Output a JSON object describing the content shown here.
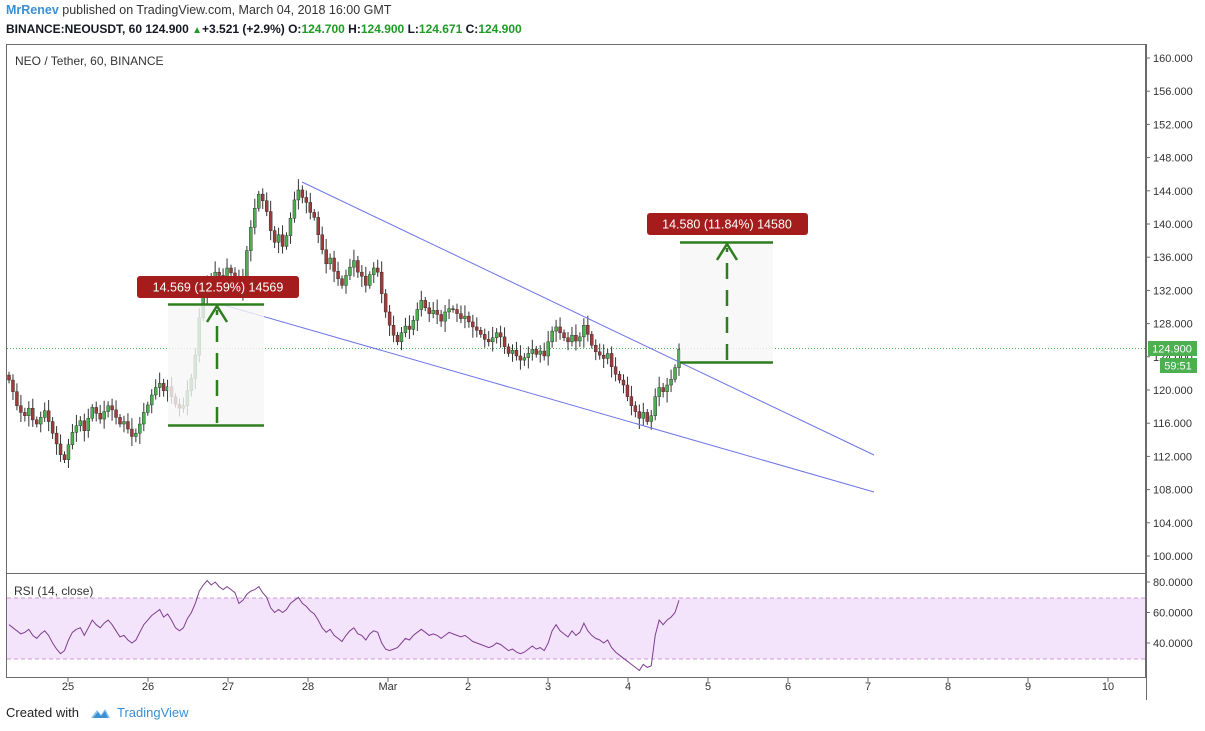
{
  "header": {
    "author": "MrRenev",
    "published_text": "published on TradingView.com, March 04, 2018 16:00 GMT",
    "symbol": "BINANCE:NEOUSDT, 60",
    "last": "124.900",
    "change": "+3.521 (+2.9%)",
    "open_label": "O:",
    "open": "124.700",
    "high_label": "H:",
    "high": "124.900",
    "low_label": "L:",
    "low": "124.671",
    "close_label": "C:",
    "close": "124.900"
  },
  "pane_title": "NEO / Tether, 60, BINANCE",
  "rsi_title": "RSI (14, close)",
  "price_badge": {
    "value": "124.900",
    "timer": "59:51"
  },
  "annotations": {
    "left_measure": "14.569 (12.59%) 14569",
    "right_measure": "14.580 (11.84%) 14580"
  },
  "footer": {
    "created_with": "Created with",
    "brand": "TradingView"
  },
  "colors": {
    "up": "#4caf50",
    "down": "#9e3b3b",
    "wick": "#333333",
    "trendline": "#6e74e8",
    "measure": "#2e7d1e",
    "badge_red": "#a51c1c",
    "price_tag": "#4caf50",
    "rsi_line": "#7e3f8f",
    "rsi_band": "#f3e3fb"
  },
  "chart_data": [
    {
      "type": "candlestick",
      "title": "NEO / Tether, 60, BINANCE",
      "x_ticks": [
        "25",
        "26",
        "27",
        "28",
        "Mar",
        "2",
        "3",
        "4",
        "5",
        "6",
        "7",
        "8",
        "9",
        "10"
      ],
      "y_ticks": [
        "100.000",
        "104.000",
        "108.000",
        "112.000",
        "116.000",
        "120.000",
        "124.000",
        "128.000",
        "132.000",
        "136.000",
        "140.000",
        "144.000",
        "148.000",
        "152.000",
        "156.000",
        "160.000"
      ],
      "ylim": [
        96,
        162
      ],
      "last_price": 124.9,
      "close_series_approx": [
        121.2,
        119.8,
        118.1,
        117.3,
        116.9,
        117.8,
        116.4,
        115.9,
        116.7,
        117.5,
        116.2,
        114.8,
        113.5,
        112.2,
        111.6,
        113.4,
        114.9,
        115.7,
        116.3,
        115.1,
        116.6,
        117.9,
        117.2,
        116.5,
        117.4,
        118.1,
        117.6,
        116.7,
        115.9,
        116.2,
        115.3,
        114.4,
        114.8,
        115.9,
        117.3,
        118.2,
        119.4,
        120.3,
        120.8,
        119.9,
        120.4,
        119.2,
        118.3,
        117.8,
        118.1,
        119.9,
        121.4,
        124.2,
        128.7,
        131.4,
        133.1,
        132.6,
        134.2,
        133.8,
        133.2,
        134.7,
        134.1,
        133.5,
        131.9,
        133.3,
        136.8,
        139.6,
        141.9,
        143.6,
        142.8,
        141.5,
        139.2,
        137.8,
        138.7,
        137.3,
        138.6,
        140.7,
        142.9,
        144.1,
        143.2,
        142.6,
        141.4,
        140.8,
        138.7,
        136.9,
        135.2,
        135.9,
        134.3,
        133.4,
        132.6,
        133.8,
        134.8,
        135.6,
        134.2,
        133.7,
        132.6,
        133.9,
        134.7,
        134.2,
        131.6,
        129.4,
        127.8,
        126.6,
        125.8,
        126.9,
        127.7,
        127.3,
        128.4,
        129.7,
        130.8,
        129.9,
        129.2,
        129.6,
        129.1,
        128.3,
        129.4,
        129.8,
        129.7,
        129.2,
        128.6,
        128.9,
        128.2,
        127.6,
        127.2,
        126.7,
        126.1,
        125.8,
        126.3,
        126.9,
        126.4,
        125.2,
        124.4,
        124.8,
        124.1,
        123.6,
        123.9,
        124.4,
        124.9,
        124.3,
        124.7,
        124.1,
        125.8,
        127.1,
        127.6,
        126.9,
        126.3,
        125.8,
        126.6,
        125.9,
        126.4,
        127.8,
        126.7,
        125.4,
        124.6,
        124.2,
        123.8,
        124.4,
        122.8,
        121.9,
        121.2,
        120.6,
        119.2,
        118.1,
        117.4,
        116.6,
        117.3,
        116.2,
        116.9,
        119.2,
        120.3,
        119.8,
        120.6,
        121.3,
        122.7,
        124.9
      ],
      "trendlines": [
        {
          "name": "upper",
          "from": [
            0,
            145.3
          ],
          "to": [
            0,
            111.9
          ]
        },
        {
          "name": "lower",
          "from": [
            0,
            130.2
          ],
          "to": [
            0,
            107.5
          ]
        }
      ],
      "measurements": [
        {
          "label": "14.569 (12.59%) 14569",
          "from": 115.7,
          "to": 130.3
        },
        {
          "label": "14.580 (11.84%) 14580",
          "from": 123.2,
          "to": 137.8
        }
      ]
    },
    {
      "type": "line",
      "title": "RSI (14, close)",
      "y_ticks": [
        "40.0000",
        "60.0000",
        "80.0000"
      ],
      "ylim": [
        20,
        85
      ],
      "bands": [
        30,
        70
      ],
      "values_approx": [
        52,
        50,
        48,
        46,
        47,
        49,
        45,
        43,
        46,
        48,
        45,
        40,
        36,
        33,
        35,
        42,
        47,
        49,
        50,
        45,
        50,
        55,
        52,
        50,
        53,
        55,
        52,
        48,
        44,
        45,
        42,
        40,
        42,
        47,
        52,
        55,
        58,
        60,
        62,
        57,
        59,
        55,
        50,
        48,
        50,
        56,
        60,
        66,
        74,
        78,
        81,
        78,
        80,
        77,
        75,
        77,
        75,
        73,
        66,
        68,
        72,
        74,
        75,
        77,
        73,
        70,
        63,
        60,
        62,
        60,
        62,
        66,
        68,
        70,
        66,
        64,
        61,
        59,
        55,
        50,
        47,
        49,
        45,
        43,
        41,
        45,
        48,
        50,
        46,
        45,
        42,
        46,
        48,
        47,
        40,
        36,
        35,
        36,
        37,
        40,
        43,
        42,
        45,
        47,
        49,
        47,
        45,
        46,
        45,
        43,
        45,
        47,
        46,
        45,
        44,
        45,
        43,
        41,
        40,
        39,
        38,
        37,
        38,
        40,
        39,
        37,
        35,
        36,
        34,
        33,
        34,
        36,
        38,
        36,
        37,
        35,
        40,
        48,
        52,
        48,
        46,
        44,
        48,
        45,
        47,
        53,
        48,
        45,
        43,
        42,
        40,
        42,
        37,
        34,
        32,
        30,
        28,
        26,
        24,
        22,
        26,
        24,
        25,
        45,
        55,
        52,
        55,
        57,
        60,
        68
      ]
    }
  ]
}
